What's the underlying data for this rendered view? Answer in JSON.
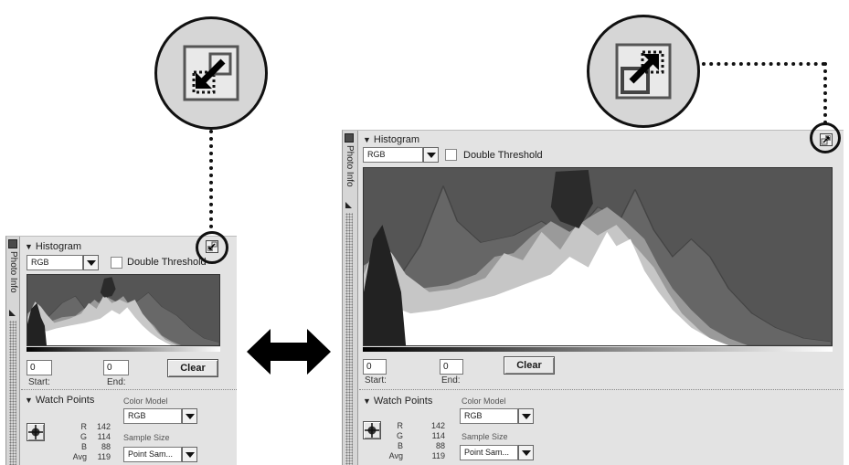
{
  "panel_small": {
    "side_tab_label": "Photo Info",
    "histogram": {
      "title": "Histogram",
      "channel_value": "RGB",
      "double_threshold_label": "Double Threshold",
      "start_value": "0",
      "end_value": "0",
      "start_label": "Start:",
      "end_label": "End:",
      "clear_label": "Clear"
    },
    "watch_points": {
      "title": "Watch Points",
      "color_model_label": "Color Model",
      "color_model_value": "RGB",
      "sample_size_label": "Sample Size",
      "sample_size_value": "Point Sam...",
      "rows": [
        {
          "key": "R",
          "value": "142"
        },
        {
          "key": "G",
          "value": "114"
        },
        {
          "key": "B",
          "value": "88"
        },
        {
          "key": "Avg",
          "value": "119"
        }
      ]
    }
  },
  "panel_large": {
    "side_tab_label": "Photo Info",
    "histogram": {
      "title": "Histogram",
      "channel_value": "RGB",
      "double_threshold_label": "Double Threshold",
      "start_value": "0",
      "end_value": "0",
      "start_label": "Start:",
      "end_label": "End:",
      "clear_label": "Clear"
    },
    "watch_points": {
      "title": "Watch Points",
      "color_model_label": "Color Model",
      "color_model_value": "RGB",
      "sample_size_label": "Sample Size",
      "sample_size_value": "Point Sam...",
      "rows": [
        {
          "key": "R",
          "value": "142"
        },
        {
          "key": "G",
          "value": "114"
        },
        {
          "key": "B",
          "value": "88"
        },
        {
          "key": "Avg",
          "value": "119"
        }
      ]
    }
  },
  "icons": {
    "shrink": "shrink-arrow-icon",
    "expand": "expand-arrow-icon",
    "toggle": "left-right-double-arrow-icon"
  },
  "colors": {
    "panel_bg": "#e3e3e3",
    "histogram_bg": "#555555",
    "callout_bg": "#d6d6d6",
    "ink": "#111111"
  }
}
